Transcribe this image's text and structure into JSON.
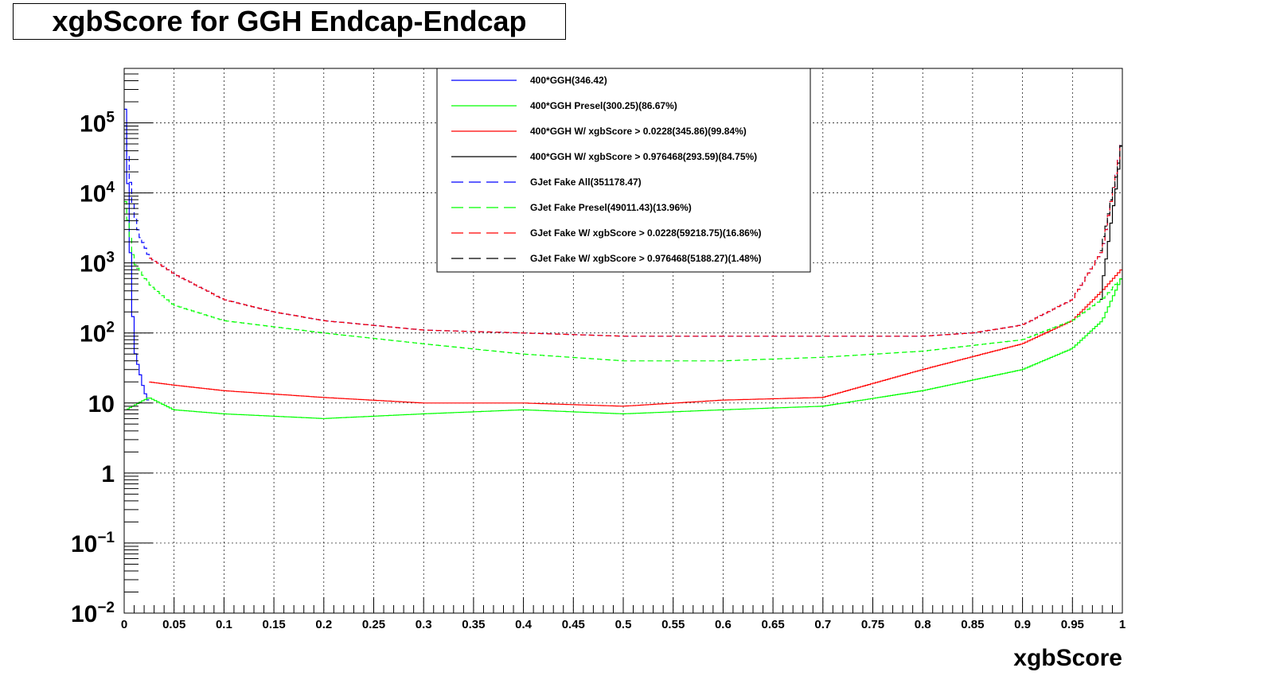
{
  "title": "xgbScore for GGH Endcap-Endcap",
  "chart_data": {
    "type": "line",
    "title": "xgbScore for GGH Endcap-Endcap",
    "xlabel": "xgbScore",
    "ylabel": "",
    "xlim": [
      0,
      1
    ],
    "ylim": [
      0.01,
      600000
    ],
    "yscale": "log",
    "grid": true,
    "legend_position": "top-center",
    "x_ticks": [
      "0",
      "0.05",
      "0.1",
      "0.15",
      "0.2",
      "0.25",
      "0.3",
      "0.35",
      "0.4",
      "0.45",
      "0.5",
      "0.55",
      "0.6",
      "0.65",
      "0.7",
      "0.75",
      "0.8",
      "0.85",
      "0.9",
      "0.95",
      "1"
    ],
    "y_ticks": [
      {
        "value": 0.01,
        "base": "10",
        "exp": "−2"
      },
      {
        "value": 0.1,
        "base": "10",
        "exp": "−1"
      },
      {
        "value": 1,
        "base": "1",
        "exp": ""
      },
      {
        "value": 10,
        "base": "10",
        "exp": ""
      },
      {
        "value": 100,
        "base": "10",
        "exp": "2"
      },
      {
        "value": 1000,
        "base": "10",
        "exp": "3"
      },
      {
        "value": 10000,
        "base": "10",
        "exp": "4"
      },
      {
        "value": 100000,
        "base": "10",
        "exp": "5"
      }
    ],
    "series": [
      {
        "name": "400*GGH(346.42)",
        "color": "#0000ff",
        "style": "solid",
        "x": [
          0.001,
          0.005,
          0.01,
          0.015,
          0.02,
          0.025
        ],
        "y": [
          200000,
          4000,
          60,
          30,
          15,
          10
        ]
      },
      {
        "name": "400*GGH Presel(300.25)(86.67%)",
        "color": "#00ff00",
        "style": "solid",
        "x": [
          0.002,
          0.025,
          0.05,
          0.1,
          0.2,
          0.3,
          0.4,
          0.5,
          0.6,
          0.7,
          0.8,
          0.9,
          0.95,
          0.98,
          0.999
        ],
        "y": [
          8,
          12,
          8,
          7,
          6,
          7,
          8,
          7,
          8,
          9,
          15,
          30,
          60,
          150,
          600
        ]
      },
      {
        "name": "400*GGH W/ xgbScore > 0.0228(345.86)(99.84%)",
        "color": "#ff0000",
        "style": "solid",
        "x": [
          0.025,
          0.05,
          0.1,
          0.2,
          0.3,
          0.4,
          0.5,
          0.6,
          0.7,
          0.8,
          0.9,
          0.95,
          0.98,
          0.999
        ],
        "y": [
          20,
          18,
          15,
          12,
          10,
          10,
          9,
          11,
          12,
          30,
          70,
          150,
          400,
          800
        ]
      },
      {
        "name": "400*GGH W/ xgbScore > 0.976468(293.59)(84.75%)",
        "color": "#000000",
        "style": "solid",
        "x": [
          0.977,
          0.98,
          0.985,
          0.99,
          0.995,
          0.999
        ],
        "y": [
          150,
          500,
          1500,
          5000,
          15000,
          50000
        ]
      },
      {
        "name": "GJet Fake All(351178.47)",
        "color": "#0000ff",
        "style": "dashed",
        "x": [
          0.001,
          0.005,
          0.01,
          0.015,
          0.02,
          0.025,
          0.05,
          0.1,
          0.15,
          0.2,
          0.3,
          0.4,
          0.5,
          0.6,
          0.7,
          0.8,
          0.85,
          0.9,
          0.95,
          0.98,
          0.999
        ],
        "y": [
          100000,
          20000,
          5000,
          2500,
          1800,
          1200,
          700,
          300,
          200,
          150,
          110,
          100,
          90,
          90,
          90,
          90,
          100,
          130,
          300,
          1500,
          50000
        ]
      },
      {
        "name": "GJet Fake Presel(49011.43)(13.96%)",
        "color": "#00ff00",
        "style": "dashed",
        "x": [
          0.001,
          0.005,
          0.01,
          0.025,
          0.05,
          0.1,
          0.2,
          0.3,
          0.4,
          0.5,
          0.6,
          0.7,
          0.8,
          0.9,
          0.95,
          0.98,
          0.999
        ],
        "y": [
          8000,
          3000,
          1000,
          500,
          250,
          150,
          100,
          70,
          50,
          40,
          40,
          45,
          55,
          80,
          150,
          300,
          600
        ]
      },
      {
        "name": "GJet Fake W/ xgbScore > 0.0228(59218.75)(16.86%)",
        "color": "#ff0000",
        "style": "dashed",
        "x": [
          0.025,
          0.05,
          0.1,
          0.15,
          0.2,
          0.3,
          0.4,
          0.5,
          0.6,
          0.7,
          0.8,
          0.85,
          0.9,
          0.95,
          0.98,
          0.999
        ],
        "y": [
          1200,
          700,
          300,
          200,
          150,
          110,
          100,
          90,
          90,
          90,
          90,
          100,
          130,
          300,
          1500,
          50000
        ]
      },
      {
        "name": "GJet Fake W/ xgbScore > 0.976468(5188.27)(1.48%)",
        "color": "#000000",
        "style": "dashed",
        "x": [
          0.977,
          0.98,
          0.985,
          0.99,
          0.995,
          0.999
        ],
        "y": [
          1000,
          2000,
          4000,
          10000,
          20000,
          50000
        ]
      }
    ]
  }
}
